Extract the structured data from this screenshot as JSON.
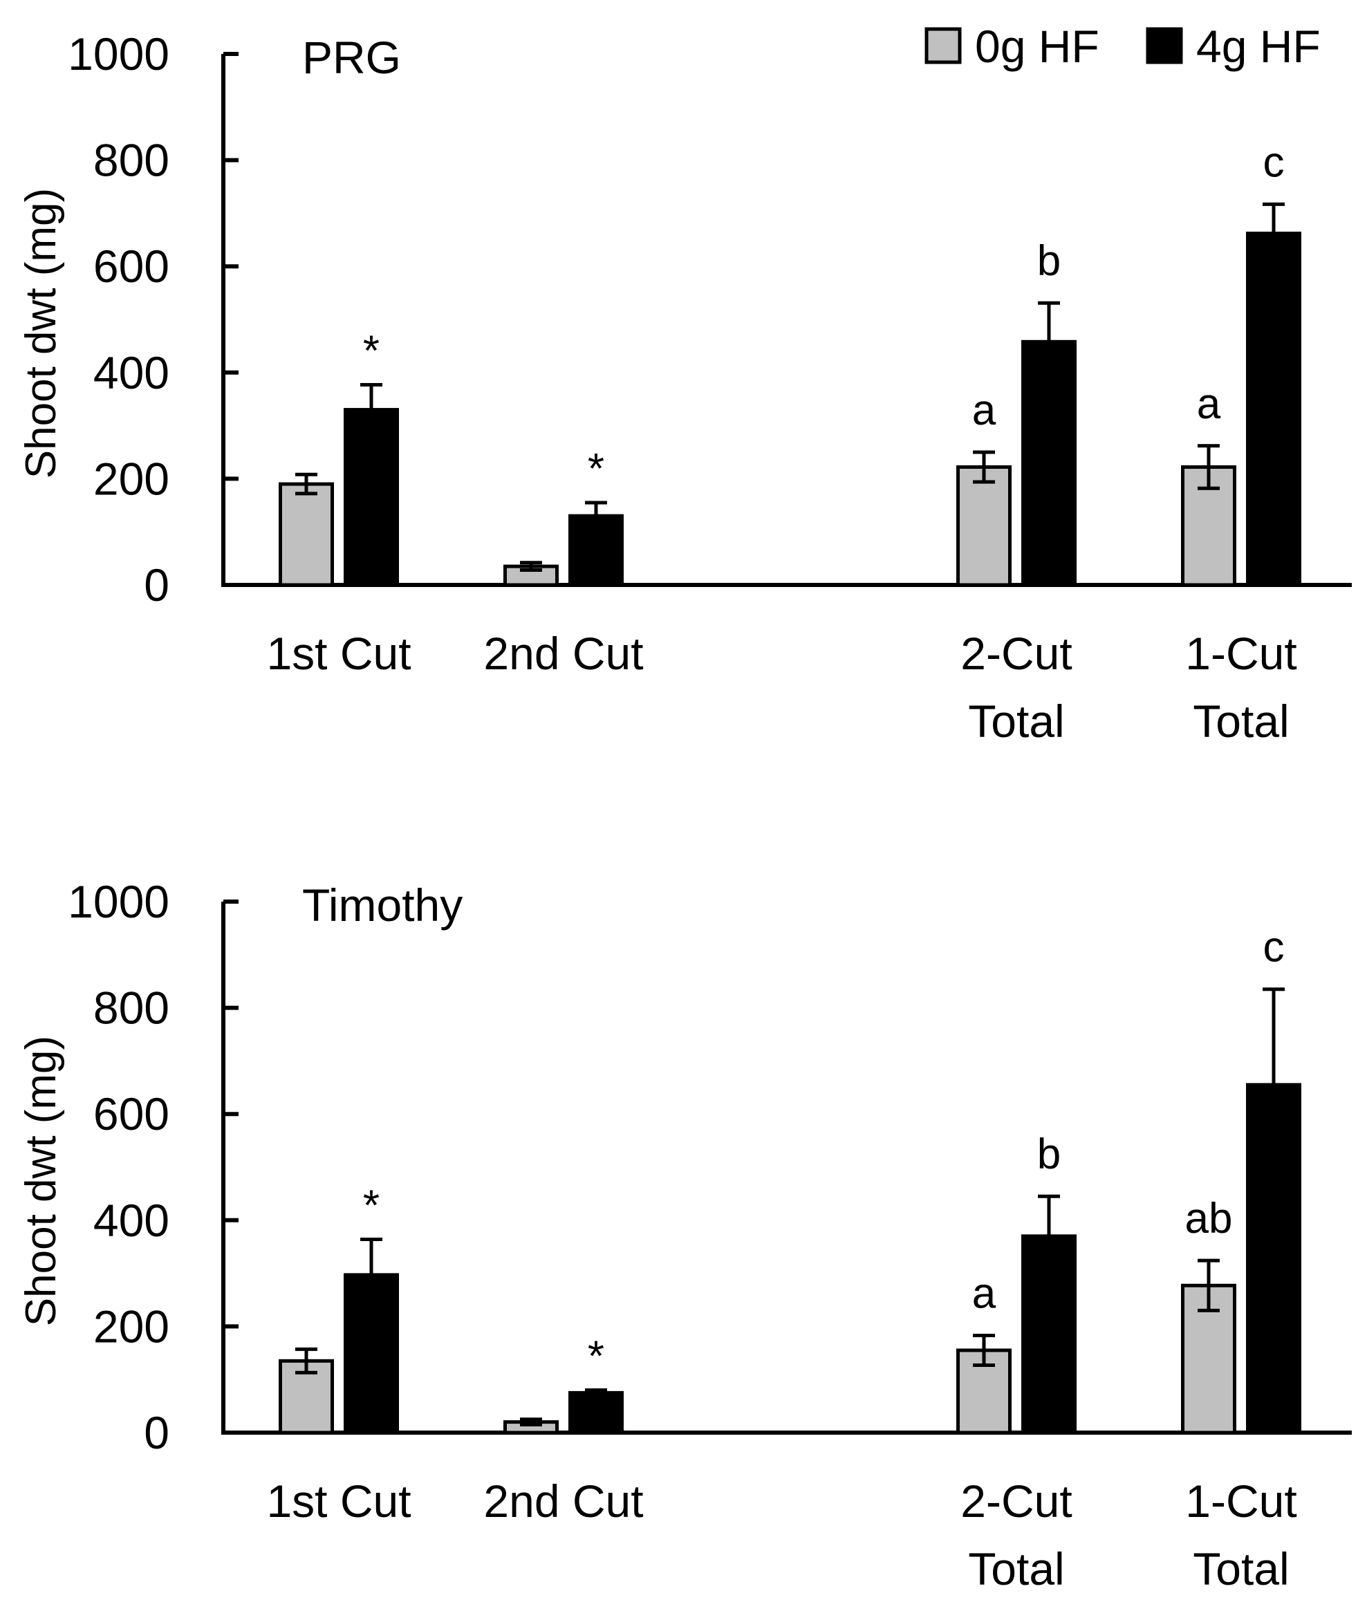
{
  "legend": {
    "series": [
      {
        "name": "0g HF",
        "color": "#c0c0c0"
      },
      {
        "name": "4g HF",
        "color": "#000000"
      }
    ]
  },
  "chart_data": [
    {
      "type": "bar",
      "title": "PRG",
      "ylabel": "Shoot dwt (mg)",
      "ylim": [
        0,
        1000
      ],
      "yticks": [
        0,
        200,
        400,
        600,
        800,
        1000
      ],
      "categories": [
        {
          "lines": [
            "1st Cut"
          ]
        },
        {
          "lines": [
            "2nd Cut"
          ]
        },
        {
          "lines": [
            "2-Cut",
            "Total"
          ]
        },
        {
          "lines": [
            "1-Cut",
            "Total"
          ]
        }
      ],
      "series": [
        {
          "name": "0g HF",
          "values": [
            190,
            35,
            222,
            222
          ],
          "errors": [
            18,
            7,
            28,
            40
          ]
        },
        {
          "name": "4g HF",
          "values": [
            330,
            130,
            458,
            662
          ],
          "errors": [
            47,
            25,
            73,
            55
          ]
        }
      ],
      "annotations": [
        {
          "category": 0,
          "series": 1,
          "text": "*"
        },
        {
          "category": 1,
          "series": 1,
          "text": "*"
        },
        {
          "category": 2,
          "series": 0,
          "text": "a"
        },
        {
          "category": 2,
          "series": 1,
          "text": "b"
        },
        {
          "category": 3,
          "series": 0,
          "text": "a"
        },
        {
          "category": 3,
          "series": 1,
          "text": "c"
        }
      ]
    },
    {
      "type": "bar",
      "title": "Timothy",
      "ylabel": "Shoot dwt (mg)",
      "ylim": [
        0,
        1000
      ],
      "yticks": [
        0,
        200,
        400,
        600,
        800,
        1000
      ],
      "categories": [
        {
          "lines": [
            "1st Cut"
          ]
        },
        {
          "lines": [
            "2nd Cut"
          ]
        },
        {
          "lines": [
            "2-Cut",
            "Total"
          ]
        },
        {
          "lines": [
            "1-Cut",
            "Total"
          ]
        }
      ],
      "series": [
        {
          "name": "0g HF",
          "values": [
            135,
            20,
            155,
            277
          ],
          "errors": [
            22,
            5,
            28,
            47
          ]
        },
        {
          "name": "4g HF",
          "values": [
            297,
            75,
            370,
            655
          ],
          "errors": [
            67,
            5,
            75,
            180
          ]
        }
      ],
      "annotations": [
        {
          "category": 0,
          "series": 1,
          "text": "*"
        },
        {
          "category": 1,
          "series": 1,
          "text": "*"
        },
        {
          "category": 2,
          "series": 0,
          "text": "a"
        },
        {
          "category": 2,
          "series": 1,
          "text": "b"
        },
        {
          "category": 3,
          "series": 0,
          "text": "ab"
        },
        {
          "category": 3,
          "series": 1,
          "text": "c"
        }
      ]
    }
  ]
}
